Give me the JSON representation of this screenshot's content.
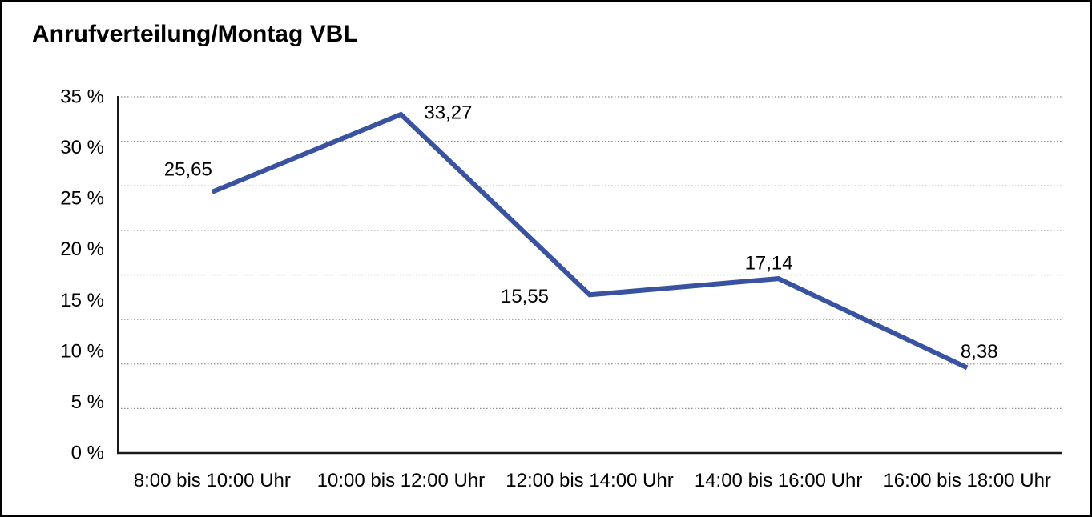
{
  "window": {
    "title": "Anrufverteilung/Montag VBL"
  },
  "chart_data": {
    "type": "line",
    "title": "Anrufverteilung/Montag VBL",
    "categories": [
      "8:00 bis 10:00 Uhr",
      "10:00 bis 12:00 Uhr",
      "12:00 bis 14:00 Uhr",
      "14:00 bis 16:00 Uhr",
      "16:00 bis 18:00 Uhr"
    ],
    "values": [
      25.65,
      33.27,
      15.55,
      17.14,
      8.38
    ],
    "value_labels": [
      "25,65",
      "33,27",
      "15,55",
      "17,14",
      "8,38"
    ],
    "unit": "%",
    "xlabel": "",
    "ylabel": "",
    "ylim": [
      0,
      35
    ],
    "ytick_values": [
      35,
      30,
      25,
      20,
      15,
      10,
      5,
      0
    ],
    "ytick_labels": [
      "35 %",
      "30 %",
      "25 %",
      "20 %",
      "15 %",
      "10 %",
      "5 %",
      "0 %"
    ],
    "grid": "horizontal-dotted",
    "gridline_divisions": 8,
    "legend": "none",
    "colors": {
      "line": "#3A53A0",
      "grid": "#8a8a8a",
      "axis": "#1a1a1a",
      "text": "#000000",
      "background": "#ffffff"
    }
  }
}
